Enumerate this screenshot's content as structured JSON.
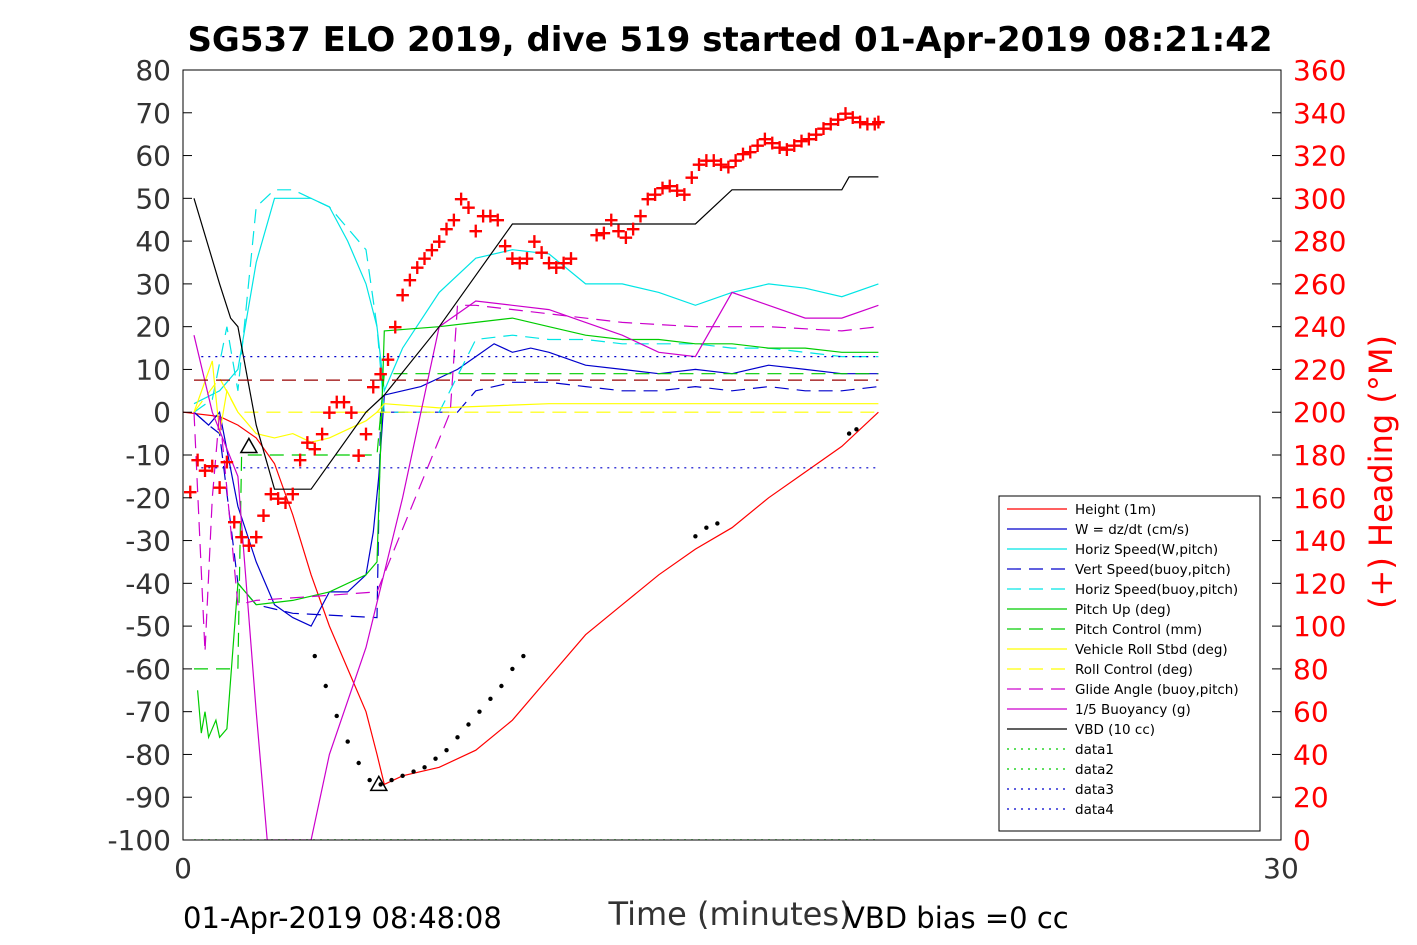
{
  "chart_data": {
    "type": "line",
    "title": "SG537 ELO 2019, dive 519 started 01-Apr-2019 08:21:42",
    "xlabel": "Time (minutes)",
    "ylabel_right": "(+) Heading (°M)",
    "footer_left": "01-Apr-2019 08:48:08",
    "footer_right": "VBD bias =0 cc",
    "xlim": [
      0,
      30
    ],
    "ylim": [
      -100,
      80
    ],
    "ylim_right": [
      0,
      360
    ],
    "xticks": [
      "0",
      "30"
    ],
    "yticks": [
      "80",
      "70",
      "60",
      "50",
      "40",
      "30",
      "20",
      "10",
      "0",
      "-10",
      "-20",
      "-30",
      "-40",
      "-50",
      "-60",
      "-70",
      "-80",
      "-90",
      "-100"
    ],
    "yticks_right": [
      "360",
      "340",
      "320",
      "300",
      "280",
      "260",
      "240",
      "220",
      "200",
      "180",
      "160",
      "140",
      "120",
      "100",
      "80",
      "60",
      "40",
      "20",
      "0"
    ],
    "right_axis_color": "#ff0000",
    "grid": false,
    "legend_position": "lower-right",
    "series": [
      {
        "name": "Height (1m)",
        "color": "#ff0000",
        "style": "solid",
        "x": [
          0,
          1,
          1.5,
          2,
          2.5,
          3,
          3.5,
          4,
          4.5,
          5,
          5.3,
          5.5,
          6,
          7,
          8,
          9,
          10,
          11,
          12,
          13,
          14,
          15,
          16,
          17,
          18,
          19
        ],
        "y": [
          0,
          -1,
          -3,
          -6,
          -12,
          -24,
          -38,
          -50,
          -60,
          -70,
          -80,
          -87,
          -85,
          -83,
          -79,
          -72,
          -62,
          -52,
          -45,
          -38,
          -32,
          -27,
          -20,
          -14,
          -8,
          0
        ]
      },
      {
        "name": "W = dz/dt (cm/s)",
        "color": "#0000cc",
        "style": "solid",
        "x": [
          0.3,
          0.7,
          1,
          1.5,
          2,
          2.5,
          3,
          3.5,
          4,
          4.5,
          5,
          5.2,
          5.35,
          5.5,
          6,
          6.5,
          7,
          7.5,
          8,
          8.5,
          9,
          9.5,
          10,
          11,
          12,
          13,
          14,
          15,
          16,
          17,
          18,
          19
        ],
        "y": [
          0,
          -3,
          0,
          -22,
          -35,
          -45,
          -48,
          -50,
          -42,
          -42,
          -38,
          -28,
          -15,
          4,
          5,
          6,
          8,
          10,
          13,
          16,
          14,
          15,
          14,
          11,
          10,
          9,
          10,
          9,
          11,
          10,
          9,
          9
        ]
      },
      {
        "name": "Horiz Speed(W,pitch)",
        "color": "#00e5e5",
        "style": "solid",
        "x": [
          0.3,
          1,
          1.5,
          2,
          2.5,
          3,
          3.5,
          4,
          4.5,
          5,
          5.3,
          5.5,
          6,
          7,
          8,
          9,
          10,
          11,
          12,
          13,
          14,
          15,
          16,
          17,
          18,
          19
        ],
        "y": [
          2,
          5,
          10,
          35,
          50,
          50,
          50,
          48,
          40,
          30,
          20,
          5,
          15,
          28,
          36,
          38,
          37,
          30,
          30,
          28,
          25,
          28,
          30,
          29,
          27,
          30
        ]
      },
      {
        "name": "Vert Speed(buoy,pitch)",
        "color": "#0000cc",
        "style": "dashed",
        "x": [
          0.3,
          0.7,
          1,
          1.5,
          2,
          2.5,
          3,
          5.3,
          5.4,
          5.5,
          7,
          7.5,
          8,
          9,
          10,
          11,
          12,
          13,
          14,
          15,
          16,
          17,
          18,
          19
        ],
        "y": [
          0,
          -3,
          -5,
          -40,
          -45,
          -46,
          -47,
          -48,
          0,
          0,
          0,
          0,
          5,
          7,
          7,
          6,
          5,
          5,
          6,
          5,
          6,
          5,
          5,
          6
        ]
      },
      {
        "name": "Horiz Speed(buoy,pitch)",
        "color": "#00e5e5",
        "style": "dashed",
        "x": [
          0.3,
          0.8,
          1.2,
          1.5,
          2,
          2.5,
          3,
          4,
          5,
          5.3,
          5.5,
          7,
          8,
          9,
          10,
          11,
          12,
          13,
          14,
          15,
          16,
          17,
          18,
          19
        ],
        "y": [
          0,
          3,
          20,
          5,
          48,
          52,
          52,
          48,
          38,
          20,
          0,
          0,
          17,
          18,
          17,
          17,
          16,
          16,
          16,
          15,
          15,
          14,
          13,
          13
        ]
      },
      {
        "name": "Pitch Up (deg)",
        "color": "#00cc00",
        "style": "solid",
        "x": [
          0.4,
          0.5,
          0.6,
          0.7,
          0.9,
          1,
          1.2,
          1.5,
          2,
          3,
          4,
          5,
          5.3,
          5.5,
          7,
          8,
          9,
          10,
          11,
          12,
          13,
          14,
          15,
          16,
          17,
          18,
          19
        ],
        "y": [
          -65,
          -75,
          -70,
          -76,
          -72,
          -76,
          -74,
          -40,
          -45,
          -44,
          -42,
          -38,
          -35,
          19,
          20,
          21,
          22,
          20,
          18,
          17,
          17,
          16,
          16,
          15,
          15,
          14,
          14
        ]
      },
      {
        "name": "Pitch Control (mm)",
        "color": "#00cc00",
        "style": "dashed",
        "x": [
          0.3,
          1.5,
          1.6,
          2,
          5,
          5.3,
          5.5,
          19
        ],
        "y": [
          -60,
          -60,
          -10,
          -10,
          -10,
          -10,
          9,
          9
        ]
      },
      {
        "name": "Vehicle Roll Stbd (deg)",
        "color": "#ffff00",
        "style": "solid",
        "x": [
          0.3,
          0.8,
          1,
          1.2,
          1.5,
          2,
          2.5,
          3,
          3.5,
          4,
          5,
          5.3,
          5.5,
          7,
          10,
          15,
          19
        ],
        "y": [
          0,
          12,
          -5,
          5,
          0,
          -5,
          -6,
          -5,
          -7,
          -6,
          -2,
          0,
          2,
          1,
          2,
          2,
          2
        ]
      },
      {
        "name": "Roll Control (deg)",
        "color": "#ffff00",
        "style": "dashed",
        "x": [
          0.3,
          1,
          1.5,
          19
        ],
        "y": [
          0,
          8,
          0,
          0
        ]
      },
      {
        "name": "Glide Angle (buoy,pitch)",
        "color": "#cc00cc",
        "style": "dashed",
        "x": [
          0.3,
          0.6,
          0.8,
          1,
          1.5,
          2,
          5.3,
          7.3,
          7.5,
          8,
          10,
          12,
          14,
          16,
          18,
          19
        ],
        "y": [
          0,
          -56,
          -20,
          0,
          -45,
          -44,
          -42,
          0,
          25,
          25,
          23,
          21,
          20,
          20,
          19,
          20
        ]
      },
      {
        "name": "1/5 Buoyancy (g)",
        "color": "#cc00cc",
        "style": "solid",
        "x": [
          0.3,
          0.8,
          1.5,
          2,
          2.3,
          3.5,
          4,
          5,
          6,
          7,
          8,
          9,
          10,
          11,
          12,
          13,
          14,
          15,
          16,
          17,
          18,
          19
        ],
        "y": [
          18,
          0,
          -15,
          -70,
          -100,
          -100,
          -80,
          -55,
          -20,
          20,
          26,
          25,
          24,
          21,
          18,
          14,
          13,
          28,
          25,
          22,
          22,
          25
        ]
      },
      {
        "name": "VBD (10 cc)",
        "color": "#000000",
        "style": "solid",
        "x": [
          0.3,
          1,
          1.3,
          1.5,
          2,
          2.5,
          3.5,
          5,
          5.5,
          7,
          8,
          9,
          10,
          11,
          13,
          14,
          15,
          16,
          17,
          18,
          18.2,
          19
        ],
        "y": [
          50,
          30,
          22,
          20,
          -3,
          -18,
          -18,
          0,
          4,
          20,
          32,
          44,
          44,
          44,
          44,
          44,
          52,
          52,
          52,
          52,
          55,
          55
        ]
      },
      {
        "name": "data1",
        "color": "#00cc00",
        "style": "dotted",
        "x": [
          0.3,
          19
        ],
        "y": [
          -100,
          -100
        ]
      },
      {
        "name": "data2",
        "color": "#00cc00",
        "style": "dotted",
        "x": [
          0.3,
          19
        ],
        "y": [
          -100,
          -100
        ]
      },
      {
        "name": "data3",
        "color": "#0000cc",
        "style": "dotted",
        "x": [
          0.5,
          19
        ],
        "y": [
          13,
          13
        ]
      },
      {
        "name": "data4",
        "color": "#0000cc",
        "style": "dotted",
        "x": [
          0.5,
          19
        ],
        "y": [
          -13,
          -13
        ]
      }
    ],
    "reference_lines": [
      {
        "color": "#990000",
        "style": "dashed",
        "x": [
          0.3,
          19
        ],
        "y": [
          7.5,
          7.5
        ]
      }
    ],
    "heading_markers": {
      "color": "#ff0000",
      "symbol": "+",
      "axis": "right",
      "x": [
        0.2,
        0.4,
        0.6,
        0.8,
        1.0,
        1.2,
        1.4,
        1.6,
        1.8,
        2.0,
        2.2,
        2.4,
        2.6,
        2.8,
        3.0,
        3.2,
        3.4,
        3.6,
        3.8,
        4.0,
        4.2,
        4.4,
        4.6,
        4.8,
        5.0,
        5.2,
        5.4,
        5.6,
        5.8,
        6.0,
        6.2,
        6.4,
        6.6,
        6.8,
        7.0,
        7.2,
        7.4,
        7.6,
        7.8,
        8.0,
        8.2,
        8.4,
        8.6,
        8.8,
        9.0,
        9.2,
        9.4,
        9.6,
        9.8,
        10.0,
        10.2,
        10.4,
        10.6,
        11.3,
        11.5,
        11.7,
        11.9,
        12.1,
        12.3,
        12.5,
        12.7,
        12.9,
        13.1,
        13.3,
        13.5,
        13.7,
        13.9,
        14.1,
        14.3,
        14.5,
        14.7,
        14.9,
        15.1,
        15.3,
        15.5,
        15.7,
        15.9,
        16.1,
        16.3,
        16.5,
        16.7,
        16.9,
        17.1,
        17.3,
        17.5,
        17.7,
        17.9,
        18.1,
        18.3,
        18.5,
        18.7,
        18.9,
        19.0
      ],
      "y": [
        163,
        178,
        173,
        175,
        165,
        177,
        149,
        142,
        138,
        142,
        152,
        162,
        160,
        158,
        162,
        178,
        186,
        183,
        190,
        200,
        205,
        205,
        200,
        180,
        190,
        212,
        218,
        225,
        240,
        255,
        262,
        268,
        272,
        276,
        280,
        286,
        290,
        300,
        296,
        285,
        292,
        292,
        290,
        278,
        272,
        270,
        272,
        280,
        275,
        270,
        268,
        270,
        272,
        283,
        284,
        290,
        285,
        282,
        286,
        292,
        300,
        302,
        305,
        306,
        304,
        302,
        310,
        316,
        318,
        318,
        316,
        315,
        318,
        321,
        322,
        325,
        328,
        326,
        324,
        323,
        325,
        327,
        328,
        330,
        333,
        335,
        337,
        340,
        338,
        336,
        335,
        335,
        336
      ]
    },
    "black_markers": {
      "color": "#000000",
      "symbol": "dot",
      "x": [
        3.6,
        3.9,
        4.2,
        4.5,
        4.8,
        5.1,
        5.4,
        5.7,
        6.0,
        6.3,
        6.6,
        6.9,
        7.2,
        7.5,
        7.8,
        8.1,
        8.4,
        8.7,
        9.0,
        9.3,
        14.0,
        14.3,
        14.6,
        18.2,
        18.4
      ],
      "y": [
        -57,
        -64,
        -71,
        -77,
        -82,
        -86,
        -87,
        -86,
        -85,
        -84,
        -83,
        -81,
        -79,
        -76,
        -73,
        -70,
        -67,
        -64,
        -60,
        -57,
        -29,
        -27,
        -26,
        -5,
        -4
      ]
    },
    "triangle_markers": {
      "color": "#000000",
      "x": [
        1.8,
        5.35
      ],
      "y": [
        -8,
        -87
      ]
    }
  }
}
